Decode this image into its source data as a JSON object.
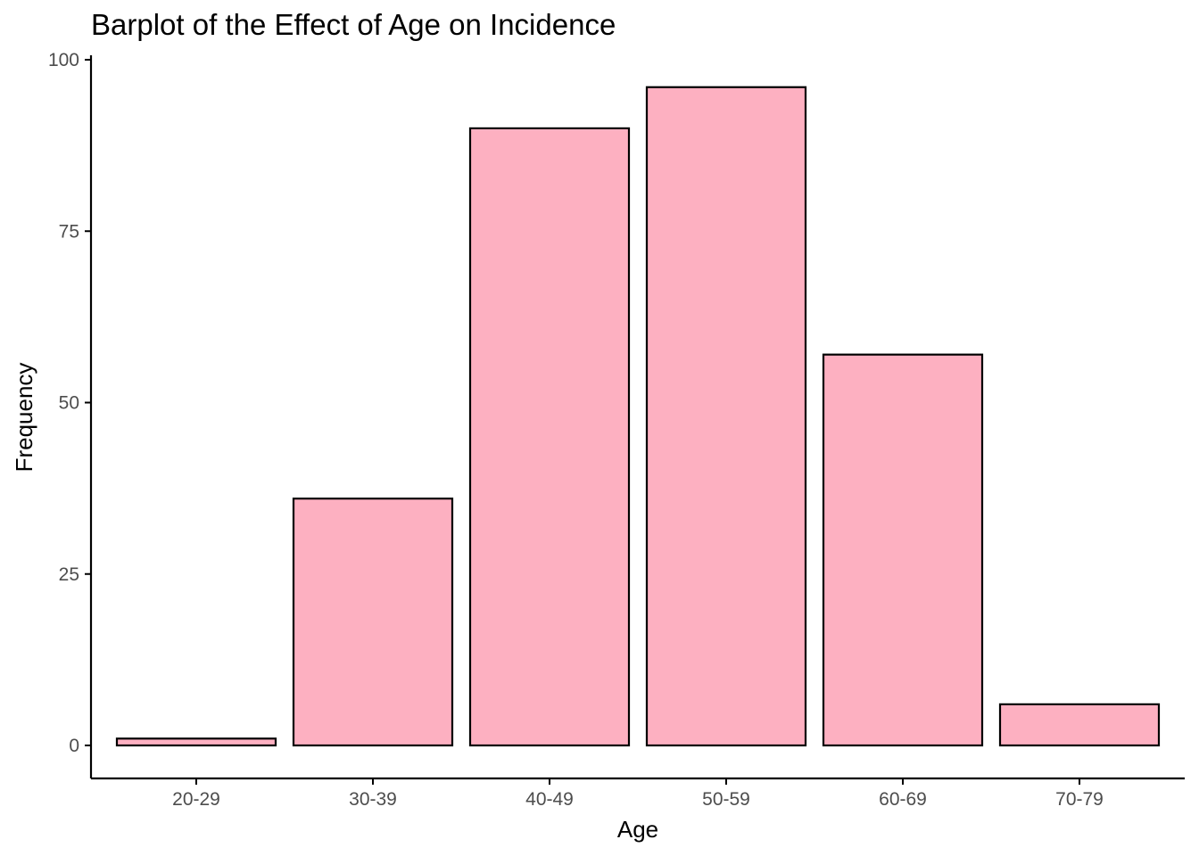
{
  "chart_data": {
    "type": "bar",
    "title": "Barplot of the Effect of Age on Incidence",
    "xlabel": "Age",
    "ylabel": "Frequency",
    "categories": [
      "20-29",
      "30-39",
      "40-49",
      "50-59",
      "60-69",
      "70-79"
    ],
    "values": [
      1,
      36,
      90,
      96,
      57,
      6
    ],
    "ylim": [
      0,
      100
    ],
    "yticks": [
      0,
      25,
      50,
      75,
      100
    ],
    "grid": false,
    "legend": "none",
    "colors": {
      "bar_fill": "#FDB0C1",
      "bar_stroke": "#000000",
      "axis": "#000000",
      "tick_text": "#4d4d4d"
    }
  }
}
